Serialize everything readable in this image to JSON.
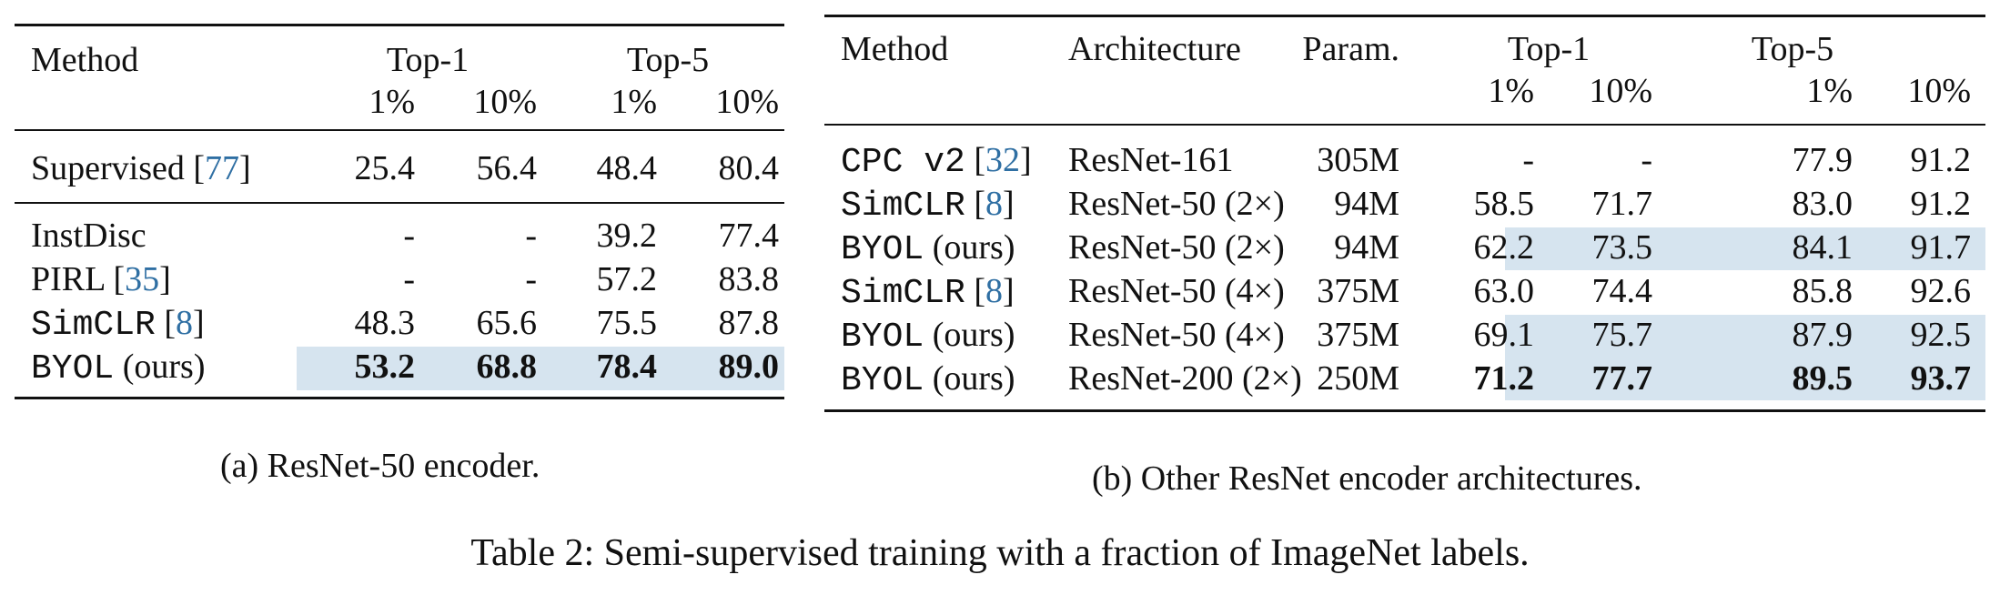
{
  "table_a": {
    "header": {
      "method": "Method",
      "top1": "Top-1",
      "top5": "Top-5",
      "pct1": "1%",
      "pct10": "10%"
    },
    "supervised": {
      "name": "Supervised",
      "cite": "77",
      "values": [
        "25.4",
        "56.4",
        "48.4",
        "80.4"
      ]
    },
    "rows": [
      {
        "name": "InstDisc",
        "cite": "",
        "values": [
          "-",
          "-",
          "39.2",
          "77.4"
        ]
      },
      {
        "name": "PIRL",
        "cite": "35",
        "values": [
          "-",
          "-",
          "57.2",
          "83.8"
        ]
      },
      {
        "name": "SimCLR",
        "cite": "8",
        "values": [
          "48.3",
          "65.6",
          "75.5",
          "87.8"
        ]
      },
      {
        "name": "BYOL",
        "suffix": "(ours)",
        "values": [
          "53.2",
          "68.8",
          "78.4",
          "89.0"
        ]
      }
    ],
    "caption": "(a) ResNet-50 encoder."
  },
  "table_b": {
    "header": {
      "method": "Method",
      "architecture": "Architecture",
      "param": "Param.",
      "top1": "Top-1",
      "top5": "Top-5",
      "pct1": "1%",
      "pct10": "10%"
    },
    "rows": [
      {
        "name": "CPC v2",
        "cite": "32",
        "arch": "ResNet-161",
        "param": "305M",
        "values": [
          "-",
          "-",
          "77.9",
          "91.2"
        ]
      },
      {
        "name": "SimCLR",
        "cite": "8",
        "arch": "ResNet-50 (2×)",
        "param": "94M",
        "values": [
          "58.5",
          "71.7",
          "83.0",
          "91.2"
        ]
      },
      {
        "name": "BYOL",
        "suffix": "(ours)",
        "arch": "ResNet-50 (2×)",
        "param": "94M",
        "values": [
          "62.2",
          "73.5",
          "84.1",
          "91.7"
        ]
      },
      {
        "name": "SimCLR",
        "cite": "8",
        "arch": "ResNet-50 (4×)",
        "param": "375M",
        "values": [
          "63.0",
          "74.4",
          "85.8",
          "92.6"
        ]
      },
      {
        "name": "BYOL",
        "suffix": "(ours)",
        "arch": "ResNet-50 (4×)",
        "param": "375M",
        "values": [
          "69.1",
          "75.7",
          "87.9",
          "92.5"
        ]
      },
      {
        "name": "BYOL",
        "suffix": "(ours)",
        "arch": "ResNet-200 (2×)",
        "param": "250M",
        "values": [
          "71.2",
          "77.7",
          "89.5",
          "93.7"
        ]
      }
    ],
    "caption": "(b) Other ResNet encoder architectures."
  },
  "main_caption": "Table 2: Semi-supervised training with a fraction of ImageNet labels.",
  "colors": {
    "highlight": "#d6e4ef",
    "citation": "#2f6fa3"
  }
}
